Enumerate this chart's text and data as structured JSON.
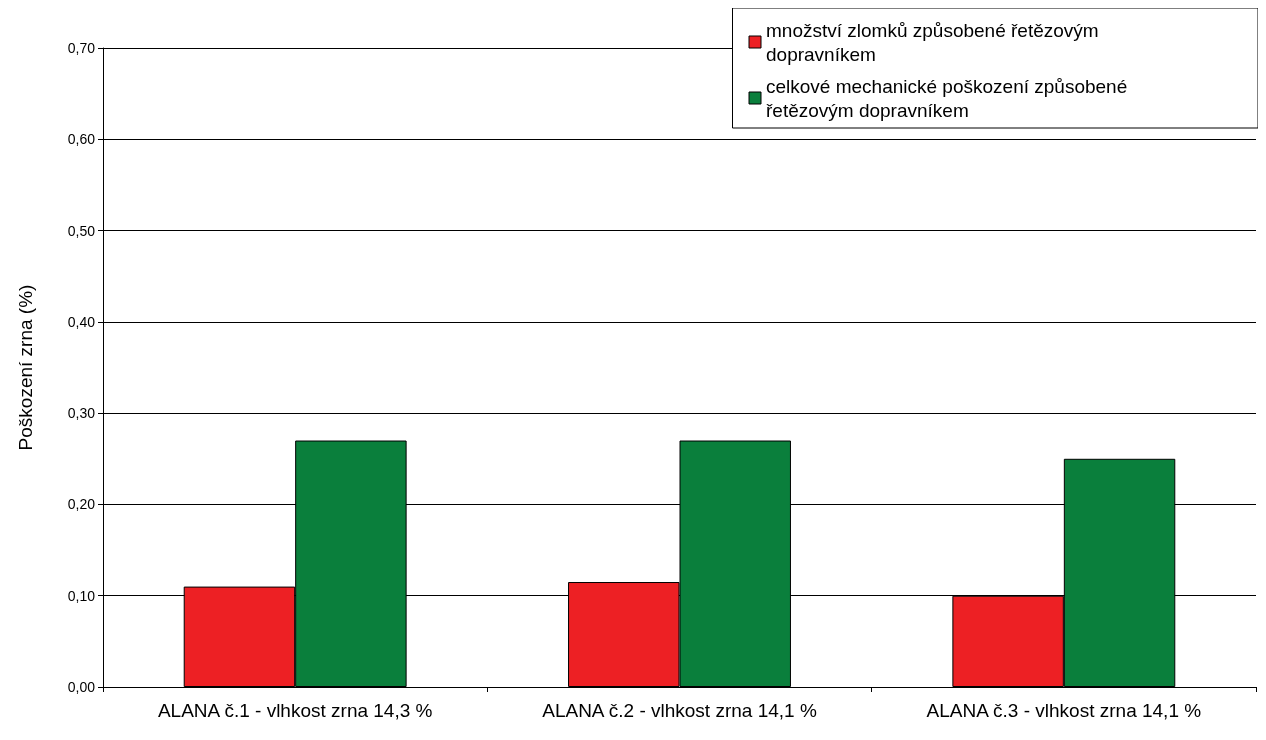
{
  "chart_data": {
    "type": "bar",
    "ylabel": "Poškození zrna (%)",
    "categories": [
      "ALANA č.1 - vlhkost zrna 14,3 %",
      "ALANA č.2 - vlhkost zrna 14,1 %",
      "ALANA č.3 - vlhkost zrna 14,1 %"
    ],
    "series": [
      {
        "name": "množství zlomků způsobené řetězovým dopravníkem",
        "color": "#ed2024",
        "values": [
          0.11,
          0.115,
          0.1
        ]
      },
      {
        "name": "celkové mechanické poškození způsobené řetězovým dopravníkem",
        "color": "#0a7f3c",
        "values": [
          0.27,
          0.27,
          0.25
        ]
      }
    ],
    "ylim": [
      0,
      0.7
    ],
    "yticks": [
      {
        "value": 0,
        "label": "0,00"
      },
      {
        "value": 0.1,
        "label": "0,10"
      },
      {
        "value": 0.2,
        "label": "0,20"
      },
      {
        "value": 0.3,
        "label": "0,30"
      },
      {
        "value": 0.4,
        "label": "0,40"
      },
      {
        "value": 0.5,
        "label": "0,50"
      },
      {
        "value": 0.6,
        "label": "0,60"
      },
      {
        "value": 0.7,
        "label": "0,70"
      }
    ],
    "grid": "y",
    "legend": "top right"
  }
}
